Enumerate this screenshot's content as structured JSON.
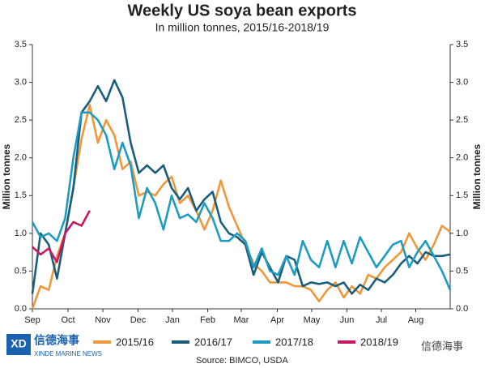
{
  "chart_data": {
    "type": "line",
    "title": "Weekly US soya bean exports",
    "subtitle": "In million tonnes, 2015/16-2018/19",
    "ylabel": "Million tonnes",
    "y2label": "Million tonnes",
    "source": "Source: BIMCO, USDA",
    "watermark": {
      "logo": "信德海事",
      "logo_sub": "XINDE MARINE NEWS",
      "right": "信德海事"
    },
    "x": [
      0,
      1,
      2,
      3,
      4,
      5,
      6,
      7,
      8,
      9,
      10,
      11,
      12,
      13,
      14,
      15,
      16,
      17,
      18,
      19,
      20,
      21,
      22,
      23,
      24,
      25,
      26,
      27,
      28,
      29,
      30,
      31,
      32,
      33,
      34,
      35,
      36,
      37,
      38,
      39,
      40,
      41,
      42,
      43,
      44,
      45,
      46,
      47,
      48,
      49,
      50,
      51
    ],
    "xlim": [
      0,
      51
    ],
    "xticks": [
      {
        "value": 0,
        "label": "Sep"
      },
      {
        "value": 4.35,
        "label": "Oct"
      },
      {
        "value": 8.6,
        "label": "Nov"
      },
      {
        "value": 12.9,
        "label": "Dec"
      },
      {
        "value": 17.1,
        "label": "Jan"
      },
      {
        "value": 21.4,
        "label": "Feb"
      },
      {
        "value": 25.5,
        "label": "Mar"
      },
      {
        "value": 29.9,
        "label": "Apr"
      },
      {
        "value": 34.1,
        "label": "May"
      },
      {
        "value": 38.4,
        "label": "Jun"
      },
      {
        "value": 42.6,
        "label": "Jul"
      },
      {
        "value": 46.8,
        "label": "Aug"
      }
    ],
    "ylim": [
      0,
      3.5
    ],
    "yticks": [
      {
        "value": 0,
        "label": "0.0"
      },
      0.5,
      {
        "value": 1,
        "label": "1.0"
      },
      1.5,
      {
        "value": 2,
        "label": "2.0"
      },
      2.5,
      {
        "value": 3,
        "label": "3.0"
      },
      3.5
    ],
    "y2lim": [
      0,
      3.5
    ],
    "y2ticks": [
      {
        "value": 0,
        "label": "0.0"
      },
      0.5,
      {
        "value": 1,
        "label": "1.0"
      },
      1.5,
      {
        "value": 2,
        "label": "2.0"
      },
      2.5,
      {
        "value": 3,
        "label": "3.0"
      },
      3.5
    ],
    "series": [
      {
        "name": "2015/16",
        "color": "#f0973a",
        "values": [
          0.0,
          0.3,
          0.25,
          0.7,
          1.0,
          1.6,
          2.25,
          2.7,
          2.2,
          2.5,
          2.3,
          1.85,
          1.95,
          1.5,
          1.55,
          1.5,
          1.65,
          1.75,
          1.4,
          1.5,
          1.3,
          1.05,
          1.3,
          1.7,
          1.35,
          1.1,
          0.85,
          0.6,
          0.5,
          0.35,
          0.35,
          0.35,
          0.3,
          0.3,
          0.25,
          0.1,
          0.25,
          0.35,
          0.15,
          0.3,
          0.2,
          0.45,
          0.4,
          0.55,
          0.65,
          0.75,
          1.0,
          0.8,
          0.65,
          0.85,
          1.1,
          1.02
        ]
      },
      {
        "name": "2016/17",
        "color": "#1b5e7b",
        "values": [
          0.2,
          1.0,
          0.85,
          0.4,
          1.0,
          1.6,
          2.6,
          2.75,
          2.95,
          2.75,
          3.03,
          2.8,
          2.2,
          1.8,
          1.9,
          1.8,
          1.9,
          1.6,
          1.45,
          1.6,
          1.3,
          1.45,
          1.55,
          1.15,
          1.0,
          0.95,
          0.85,
          0.45,
          0.75,
          0.55,
          0.35,
          0.7,
          0.65,
          0.3,
          0.35,
          0.33,
          0.35,
          0.3,
          0.35,
          0.2,
          0.32,
          0.25,
          0.4,
          0.35,
          0.45,
          0.6,
          0.7,
          0.6,
          0.75,
          0.7,
          0.7,
          0.72
        ]
      },
      {
        "name": "2017/18",
        "color": "#1d9cc2",
        "values": [
          1.15,
          0.95,
          1.0,
          0.9,
          1.2,
          2.0,
          2.6,
          2.6,
          2.5,
          2.3,
          1.85,
          2.2,
          1.9,
          1.2,
          1.6,
          1.4,
          1.05,
          1.5,
          1.2,
          1.25,
          1.15,
          1.4,
          1.2,
          0.9,
          0.9,
          1.0,
          0.9,
          0.55,
          0.8,
          0.5,
          0.45,
          0.7,
          0.45,
          0.9,
          0.65,
          0.55,
          0.9,
          0.55,
          0.9,
          0.6,
          0.95,
          0.75,
          0.55,
          0.7,
          0.85,
          0.9,
          0.55,
          0.75,
          0.9,
          0.7,
          0.5,
          0.25
        ]
      },
      {
        "name": "2018/19",
        "color": "#c8175f",
        "values": [
          0.82,
          0.72,
          0.8,
          0.62,
          1.0,
          1.15,
          1.1,
          1.3,
          null,
          null,
          null,
          null,
          null,
          null,
          null,
          null,
          null,
          null,
          null,
          null,
          null,
          null,
          null,
          null,
          null,
          null,
          null,
          null,
          null,
          null,
          null,
          null,
          null,
          null,
          null,
          null,
          null,
          null,
          null,
          null,
          null,
          null,
          null,
          null,
          null,
          null,
          null,
          null,
          null,
          null,
          null,
          null
        ]
      }
    ]
  }
}
